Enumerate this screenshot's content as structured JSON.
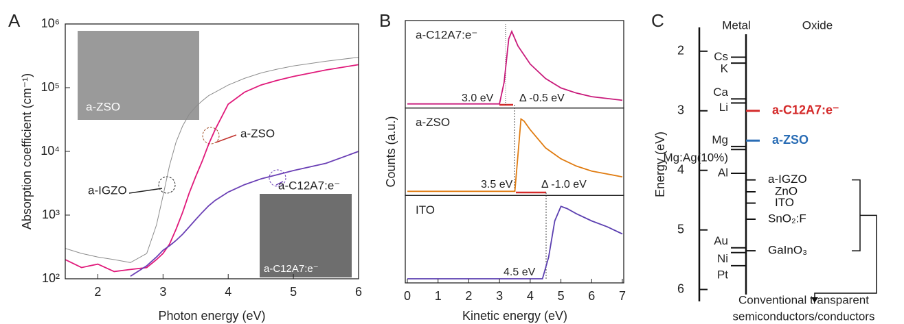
{
  "chart_data": [
    {
      "type": "line",
      "panel_label": "A",
      "xlabel": "Photon energy (eV)",
      "ylabel": "Absorption coefficient (cm⁻¹)",
      "log_y": true,
      "xlim": [
        1.5,
        6
      ],
      "ylim": [
        100,
        1000000
      ],
      "xticks": [
        2,
        3,
        4,
        5,
        6
      ],
      "yticks": [
        {
          "value": 100,
          "label": "10²"
        },
        {
          "value": 1000,
          "label": "10³"
        },
        {
          "value": 10000,
          "label": "10⁴"
        },
        {
          "value": 100000,
          "label": "10⁵"
        },
        {
          "value": 1000000,
          "label": "10⁶"
        }
      ],
      "x": [
        1.5,
        1.75,
        2,
        2.25,
        2.5,
        2.75,
        2.9,
        3,
        3.1,
        3.2,
        3.3,
        3.4,
        3.5,
        3.6,
        3.7,
        3.8,
        4,
        4.25,
        4.5,
        4.75,
        5,
        5.5,
        6
      ],
      "series": [
        {
          "name": "a-IGZO",
          "color": "#8c8c8c",
          "values": [
            300,
            250,
            220,
            200,
            180,
            250,
            700,
            2000,
            6000,
            14000,
            25000,
            38000,
            50000,
            62000,
            75000,
            85000,
            110000,
            140000,
            170000,
            195000,
            220000,
            260000,
            300000
          ]
        },
        {
          "name": "a-ZSO",
          "color": "#e0197a",
          "values": [
            200,
            150,
            170,
            130,
            140,
            150,
            200,
            250,
            350,
            600,
            1100,
            2200,
            4000,
            7000,
            13000,
            22000,
            55000,
            85000,
            110000,
            130000,
            150000,
            190000,
            230000
          ]
        },
        {
          "name": "a-C12A7:e⁻",
          "color": "#6a3fb5",
          "values": [
            null,
            null,
            null,
            null,
            110,
            160,
            220,
            280,
            330,
            400,
            500,
            650,
            850,
            1100,
            1400,
            1700,
            2300,
            3000,
            3700,
            4300,
            5000,
            6500,
            10000
          ]
        }
      ],
      "insets": [
        "a-ZSO",
        "a-C12A7:e⁻"
      ]
    },
    {
      "type": "stacked-panels",
      "panel_label": "B",
      "xlabel": "Kinetic energy (eV)",
      "ylabel": "Counts (a.u.)",
      "xlim": [
        0,
        7
      ],
      "xticks": [
        0,
        1,
        2,
        3,
        4,
        5,
        6,
        7
      ],
      "panels": [
        {
          "label": "a-C12A7:e⁻",
          "color": "#c8197a",
          "ylim": [
            0,
            1
          ],
          "x": [
            0,
            3.0,
            3.15,
            3.3,
            3.4,
            3.6,
            4,
            4.5,
            5,
            5.5,
            6,
            7
          ],
          "values": [
            0,
            0,
            0.3,
            0.9,
            1,
            0.8,
            0.55,
            0.35,
            0.22,
            0.15,
            0.1,
            0.05
          ],
          "annotations": [
            "3.0 eV",
            "Δ -0.5 eV"
          ]
        },
        {
          "label": "a-ZSO",
          "color": "#e07b10",
          "ylim": [
            0,
            1
          ],
          "x": [
            0,
            3.5,
            3.6,
            3.7,
            3.8,
            4,
            4.5,
            5,
            5.5,
            6,
            7
          ],
          "values": [
            0,
            0,
            0.5,
            1,
            0.97,
            0.85,
            0.6,
            0.45,
            0.35,
            0.28,
            0.2
          ],
          "annotations": [
            "3.5 eV",
            "Δ -1.0 eV"
          ]
        },
        {
          "label": "ITO",
          "color": "#5b3fb0",
          "ylim": [
            0,
            1
          ],
          "x": [
            0,
            4.4,
            4.6,
            4.8,
            5.0,
            5.2,
            5.5,
            6,
            6.5,
            7
          ],
          "values": [
            0,
            0,
            0.3,
            0.8,
            1,
            0.97,
            0.9,
            0.8,
            0.72,
            0.62
          ],
          "annotations": [
            "4.5 eV"
          ]
        }
      ]
    },
    {
      "type": "energy-levels",
      "panel_label": "C",
      "ylabel": "Energy (eV)",
      "invert_y": true,
      "ylim": [
        1.6,
        6.2
      ],
      "yticks": [
        2,
        3,
        4,
        5,
        6
      ],
      "headers": [
        "Metal",
        "Oxide"
      ],
      "metals": {
        "names": [
          "Cs",
          "K",
          "Ca",
          "Li",
          "Mg",
          "Mg:Ag(10%)",
          "Al",
          "Au",
          "Ni",
          "Pt"
        ],
        "values": [
          2.1,
          2.2,
          2.8,
          2.87,
          3.6,
          3.65,
          4.05,
          5.3,
          5.38,
          5.6
        ]
      },
      "oxides": {
        "names": [
          "a-C12A7:e⁻",
          "a-ZSO",
          "a-IGZO",
          "ZnO",
          "ITO",
          "SnO₂:F",
          "GaInO₃"
        ],
        "values": [
          3.0,
          3.5,
          4.16,
          4.36,
          4.55,
          4.82,
          5.35
        ],
        "colors": [
          "#d42a2a",
          "#2a6db5",
          "#111111",
          "#111111",
          "#111111",
          "#111111",
          "#111111"
        ]
      },
      "footer": [
        "Conventional transparent",
        "semiconductors/conductors"
      ]
    }
  ]
}
